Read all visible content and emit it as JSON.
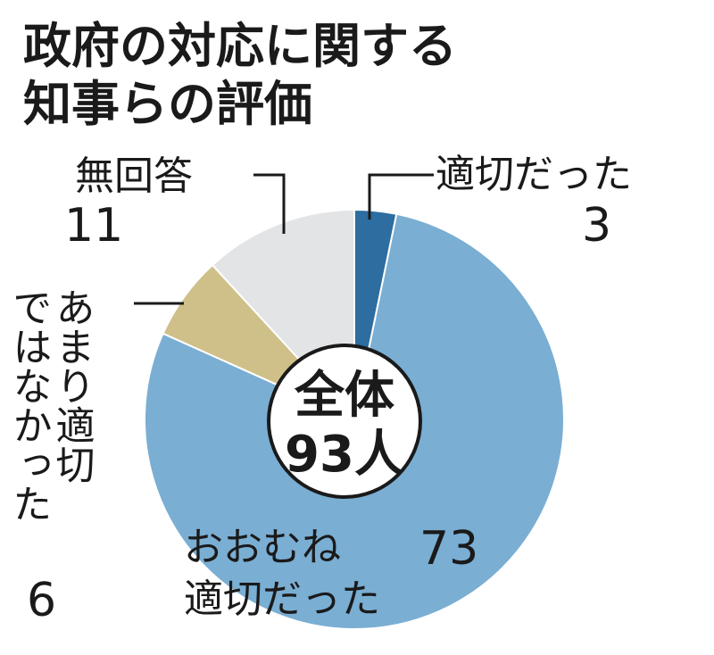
{
  "chart_data": {
    "type": "pie",
    "title_lines": [
      "政府の対応に関する",
      "知事らの評価"
    ],
    "center_label": [
      "全体",
      "93人"
    ],
    "slices": [
      {
        "name": "適切だった",
        "value": 3,
        "color": "#2d6da0"
      },
      {
        "name": "おおむね適切だった",
        "value": 73,
        "color": "#7aaed3"
      },
      {
        "name": "あまり適切ではなかった",
        "value": 6,
        "color": "#cfc08a"
      },
      {
        "name": "無回答",
        "value": 11,
        "color": "#e3e4e6"
      }
    ],
    "labels": {
      "appropriate": {
        "text": "適切だった",
        "value": "3"
      },
      "mostly": {
        "line1": "おおむね",
        "value": "73",
        "line2": "適切だった"
      },
      "not_very": {
        "column1": "あまり適切",
        "column2": "ではなかった",
        "value": "6"
      },
      "no_answer": {
        "text": "無回答",
        "value": "11"
      }
    }
  }
}
